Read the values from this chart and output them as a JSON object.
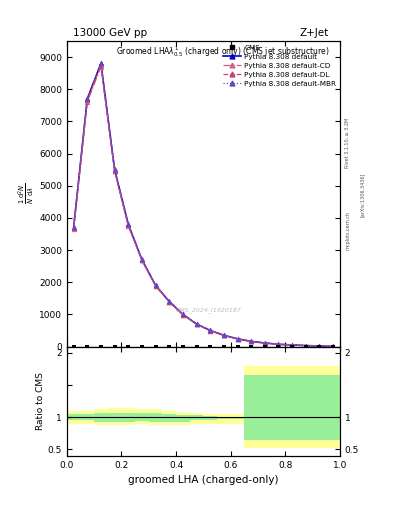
{
  "title_top": "13000 GeV pp",
  "title_right": "Z+Jet",
  "xlabel": "groomed LHA (charged-only)",
  "ratio_ylabel": "Ratio to CMS",
  "watermark": "CMS_2024_I1920187",
  "rivet_label": "Rivet 3.1.10, ≥ 3.2M",
  "arxiv_label": "[arXiv:1306.3436]",
  "mcplots_label": "mcplots.cern.ch",
  "x_data": [
    0.025,
    0.075,
    0.125,
    0.175,
    0.225,
    0.275,
    0.325,
    0.375,
    0.425,
    0.475,
    0.525,
    0.575,
    0.625,
    0.675,
    0.725,
    0.775,
    0.825,
    0.875,
    0.925,
    0.975
  ],
  "cms_data": [
    0,
    0,
    0,
    0,
    0,
    0,
    0,
    0,
    0,
    0,
    0,
    0,
    0,
    0,
    0,
    0,
    0,
    0,
    0,
    0
  ],
  "pythia_default": [
    3700,
    7700,
    8800,
    5500,
    3800,
    2700,
    1900,
    1400,
    1000,
    700,
    500,
    350,
    240,
    160,
    110,
    70,
    50,
    30,
    15,
    5
  ],
  "pythia_cd": [
    3650,
    7600,
    8700,
    5450,
    3750,
    2680,
    1880,
    1390,
    990,
    695,
    495,
    345,
    238,
    158,
    108,
    69,
    49,
    29,
    14,
    5
  ],
  "pythia_dl": [
    3680,
    7650,
    8750,
    5470,
    3770,
    2690,
    1890,
    1395,
    995,
    698,
    498,
    348,
    239,
    159,
    109,
    70,
    50,
    30,
    15,
    5
  ],
  "pythia_mbr": [
    3720,
    7720,
    8820,
    5520,
    3820,
    2710,
    1910,
    1405,
    1005,
    703,
    503,
    352,
    241,
    161,
    111,
    71,
    51,
    31,
    15,
    5
  ],
  "ratio_x_edges": [
    0.0,
    0.05,
    0.1,
    0.15,
    0.2,
    0.25,
    0.3,
    0.35,
    0.4,
    0.45,
    0.5,
    0.55,
    0.6,
    0.65,
    0.7,
    1.0
  ],
  "ratio_yellow_lo": [
    0.9,
    0.9,
    0.88,
    0.88,
    0.88,
    0.9,
    0.88,
    0.88,
    0.88,
    0.9,
    0.9,
    0.9,
    0.9,
    0.52,
    0.52,
    0.52
  ],
  "ratio_yellow_hi": [
    1.1,
    1.1,
    1.12,
    1.15,
    1.15,
    1.12,
    1.12,
    1.1,
    1.08,
    1.06,
    1.05,
    1.05,
    1.05,
    1.8,
    1.8,
    1.8
  ],
  "ratio_green_lo": [
    0.95,
    0.95,
    0.93,
    0.92,
    0.92,
    0.94,
    0.93,
    0.93,
    0.93,
    0.95,
    0.96,
    0.97,
    0.97,
    0.65,
    0.65,
    0.65
  ],
  "ratio_green_hi": [
    1.05,
    1.05,
    1.06,
    1.07,
    1.07,
    1.06,
    1.06,
    1.05,
    1.04,
    1.03,
    1.02,
    1.01,
    1.01,
    1.65,
    1.65,
    1.65
  ],
  "color_default": "#0000cc",
  "color_cd": "#cc6688",
  "color_dl": "#cc4466",
  "color_mbr": "#6644cc",
  "ylim_main": [
    0,
    9500
  ],
  "yticks_main": [
    0,
    1000,
    2000,
    3000,
    4000,
    5000,
    6000,
    7000,
    8000,
    9000
  ],
  "ylim_ratio": [
    0.4,
    2.1
  ],
  "xlim": [
    0.0,
    1.0
  ]
}
